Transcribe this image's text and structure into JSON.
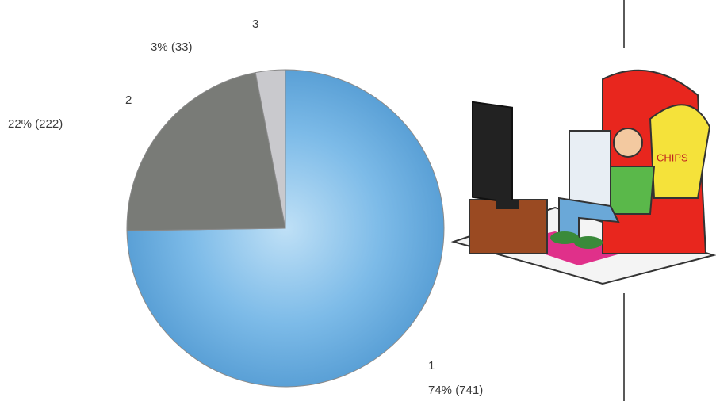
{
  "chart_data": {
    "type": "pie",
    "categories": [
      "1",
      "2",
      "3"
    ],
    "values": [
      74,
      22,
      3
    ],
    "value_labels": [
      "74% (741)",
      "22% (222)",
      "3% (33)"
    ],
    "colors": [
      "#6cade0",
      "#797b77",
      "#c9c9cd"
    ]
  }
}
